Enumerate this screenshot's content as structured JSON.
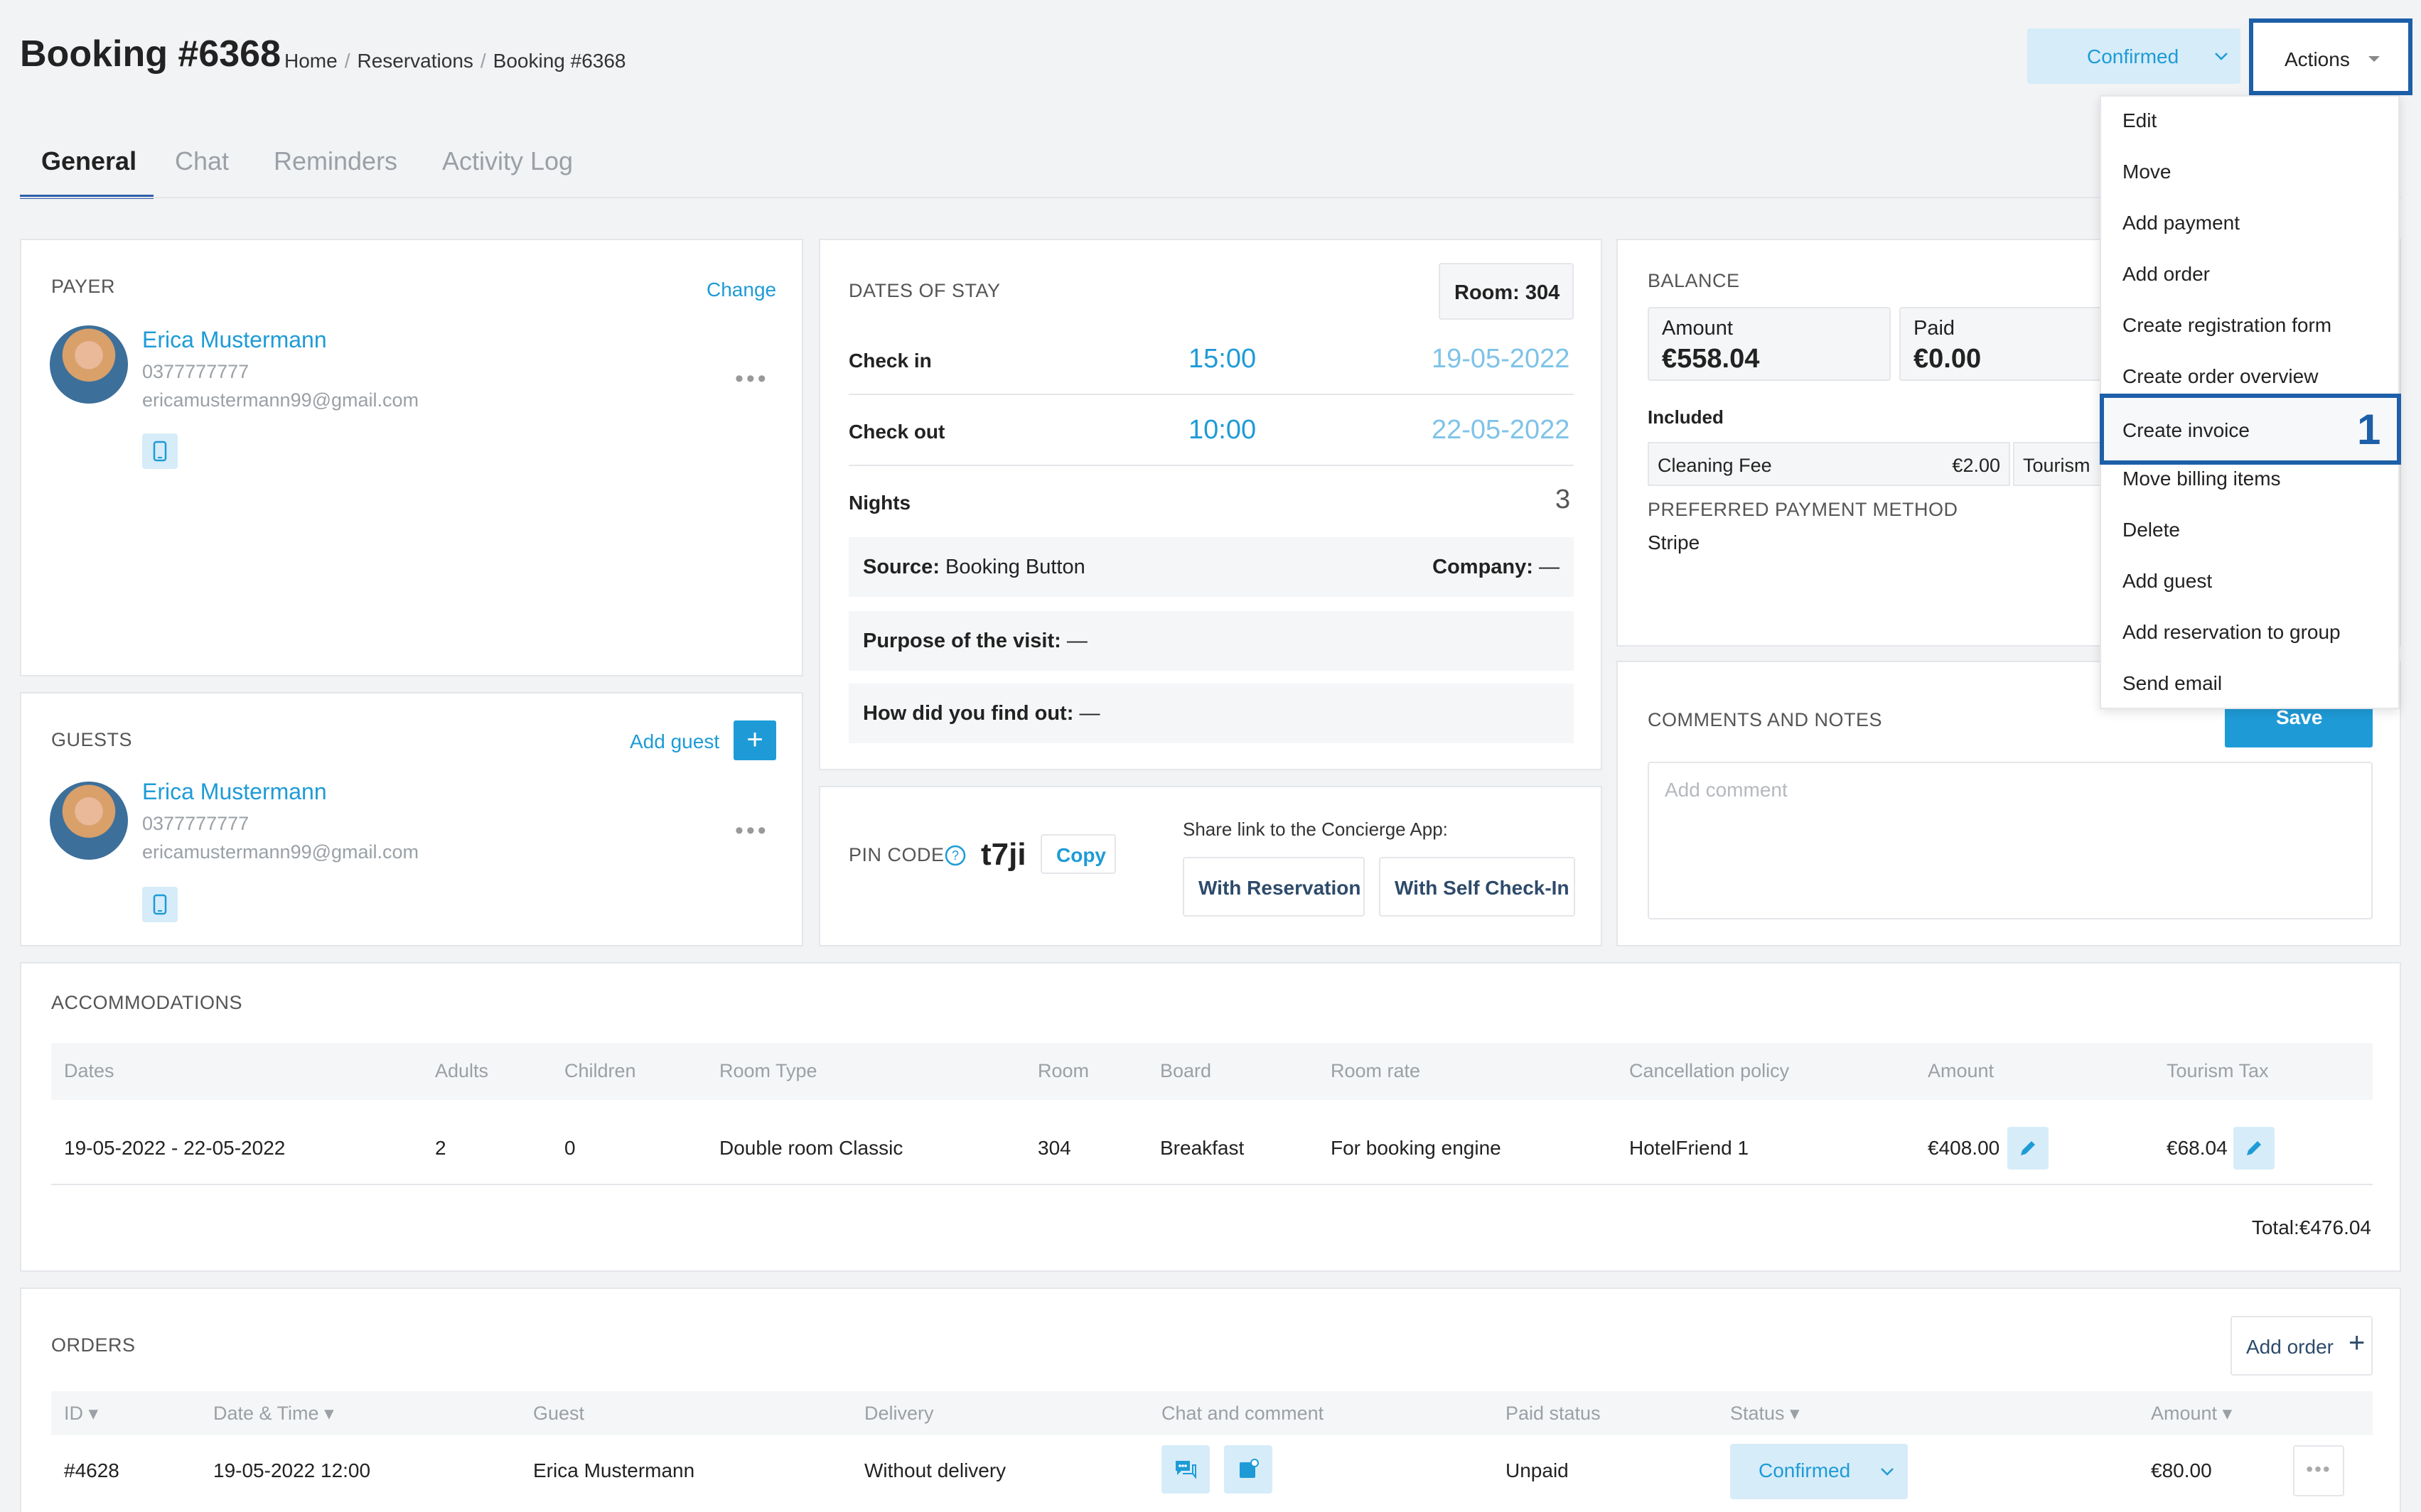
{
  "header": {
    "title": "Booking #6368",
    "breadcrumb": [
      "Home",
      "Reservations",
      "Booking #6368"
    ],
    "breadcrumb_sep": "/",
    "status_button": "Confirmed",
    "actions_button": "Actions"
  },
  "tabs": [
    "General",
    "Chat",
    "Reminders",
    "Activity Log"
  ],
  "actions_menu": {
    "items": [
      "Edit",
      "Move",
      "Add payment",
      "Add order",
      "Create registration form",
      "Create order overview",
      "Create invoice",
      "Move billing items",
      "Delete",
      "Add guest",
      "Add reservation to group",
      "Send email"
    ],
    "highlighted_index": 6,
    "annotation_number": "1"
  },
  "payer": {
    "title": "PAYER",
    "change_label": "Change",
    "name": "Erica Mustermann",
    "phone": "0377777777",
    "email": "ericamustermann99@gmail.com"
  },
  "guests": {
    "title": "GUESTS",
    "add_label": "Add guest",
    "name": "Erica Mustermann",
    "phone": "0377777777",
    "email": "ericamustermann99@gmail.com"
  },
  "dates": {
    "title": "DATES OF STAY",
    "room": "Room: 304",
    "checkin_label": "Check in",
    "checkin_time": "15:00",
    "checkin_date": "19-05-2022",
    "checkout_label": "Check out",
    "checkout_time": "10:00",
    "checkout_date": "22-05-2022",
    "nights_label": "Nights",
    "nights_value": "3",
    "source_label": "Source:",
    "source_value": "Booking Button",
    "company_label": "Company:",
    "company_value": "—",
    "purpose_label": "Purpose of the visit:",
    "purpose_value": "—",
    "findout_label": "How did you find out:",
    "findout_value": "—"
  },
  "pin": {
    "label": "PIN CODE",
    "code": "t7ji",
    "copy_label": "Copy",
    "share_label": "Share link to the Concierge App:",
    "with_reservation": "With Reservation",
    "with_self_checkin": "With Self Check-In"
  },
  "balance": {
    "title": "BALANCE",
    "amount_label": "Amount",
    "amount_value": "€558.04",
    "paid_label": "Paid",
    "paid_value": "€0.00",
    "included_label": "Included",
    "items": [
      {
        "name": "Cleaning Fee",
        "price": "€2.00"
      },
      {
        "name": "Tourism",
        "price": ""
      }
    ],
    "payment_method_label": "PREFERRED PAYMENT METHOD",
    "payment_method_value": "Stripe"
  },
  "comments": {
    "title": "COMMENTS AND NOTES",
    "save_label": "Save",
    "placeholder": "Add comment"
  },
  "accommodations": {
    "title": "ACCOMMODATIONS",
    "columns": [
      "Dates",
      "Adults",
      "Children",
      "Room Type",
      "Room",
      "Board",
      "Room rate",
      "Cancellation policy",
      "Amount",
      "Tourism Tax"
    ],
    "rows": [
      [
        "19-05-2022 - 22-05-2022",
        "2",
        "0",
        "Double room Classic",
        "304",
        "Breakfast",
        "For booking engine",
        "HotelFriend 1",
        "€408.00",
        "€68.04"
      ]
    ],
    "total": "Total:€476.04"
  },
  "orders": {
    "title": "ORDERS",
    "add_label": "Add order",
    "columns": [
      "ID",
      "Date & Time",
      "Guest",
      "Delivery",
      "Chat and comment",
      "Paid status",
      "Status",
      "Amount"
    ],
    "rows": [
      {
        "id": "#4628",
        "datetime": "19-05-2022 12:00",
        "guest": "Erica Mustermann",
        "delivery": "Without delivery",
        "paid": "Unpaid",
        "status": "Confirmed",
        "amount": "€80.00"
      }
    ]
  },
  "colors": {
    "accent": "#1e9bd7",
    "highlight_border": "#1d5fa8",
    "status_bg": "#d6ecf8"
  }
}
